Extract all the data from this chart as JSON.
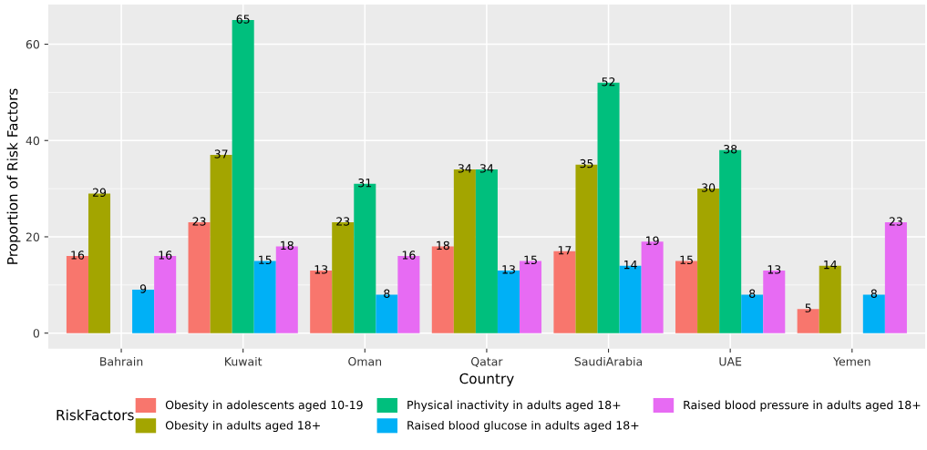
{
  "chart_data": {
    "type": "bar",
    "xlabel": "Country",
    "ylabel": "Proportion of Risk Factors",
    "legend_title": "RiskFactors",
    "categories": [
      "Bahrain",
      "Kuwait",
      "Oman",
      "Qatar",
      "SaudiArabia",
      "UAE",
      "Yemen"
    ],
    "series": [
      {
        "name": "Obesity in adolescents aged 10-19",
        "color": "#F8766D",
        "values": [
          16,
          23,
          13,
          18,
          17,
          15,
          5
        ]
      },
      {
        "name": "Obesity in adults aged 18+",
        "color": "#A3A500",
        "values": [
          29,
          37,
          23,
          34,
          35,
          30,
          14
        ]
      },
      {
        "name": "Physical inactivity in adults aged 18+",
        "color": "#00BF7D",
        "values": [
          null,
          65,
          31,
          34,
          52,
          38,
          null
        ]
      },
      {
        "name": "Raised blood glucose in adults aged 18+",
        "color": "#00B0F6",
        "values": [
          9,
          15,
          8,
          13,
          14,
          8,
          8
        ]
      },
      {
        "name": "Raised blood pressure in adults aged 18+",
        "color": "#E76BF3",
        "values": [
          16,
          18,
          16,
          15,
          19,
          13,
          23
        ]
      }
    ],
    "ylim": [
      -3.25,
      68.25
    ],
    "yticks": [
      0,
      20,
      40,
      60
    ],
    "grid": true,
    "legend": "bottom",
    "data_labels": true
  }
}
